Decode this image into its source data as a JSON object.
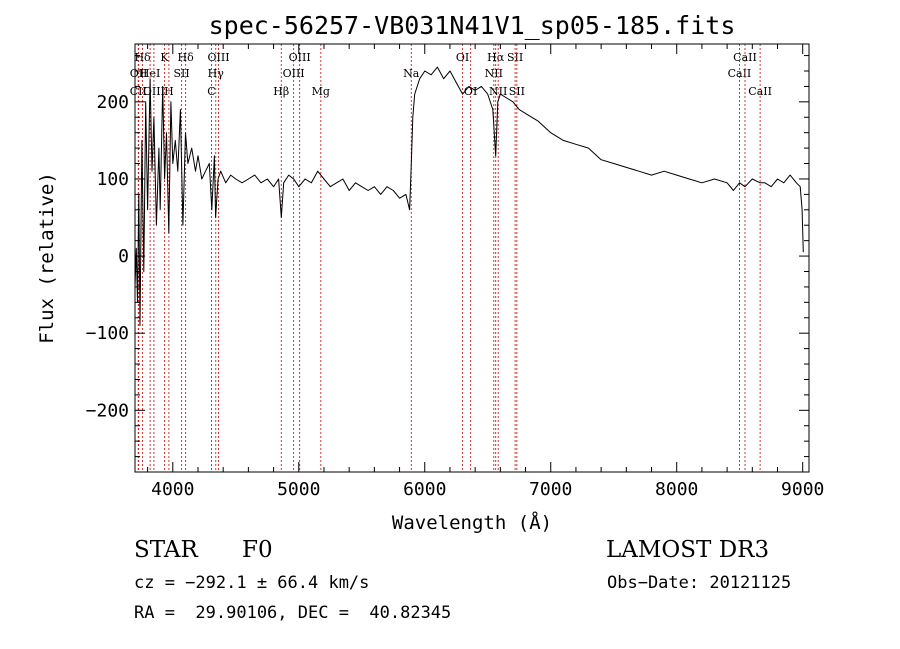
{
  "chart_data": {
    "type": "line",
    "title": "spec-56257-VB031N41V1_sp05-185.fits",
    "xlabel": "Wavelength (Å)",
    "ylabel": "Flux (relative)",
    "xlim": [
      3700,
      9050
    ],
    "ylim": [
      -280,
      275
    ],
    "xticks": [
      4000,
      5000,
      6000,
      7000,
      8000,
      9000
    ],
    "yticks": [
      -200,
      -100,
      0,
      100,
      200
    ],
    "grid": false,
    "line_color": "#000000",
    "marker_color": "#cc2222",
    "series": [
      {
        "x": [
          3700,
          3710,
          3720,
          3730,
          3740,
          3755,
          3770,
          3785,
          3800,
          3820,
          3835,
          3850,
          3870,
          3890,
          3900,
          3920,
          3935,
          3950,
          3968,
          3985,
          4000,
          4020,
          4040,
          4060,
          4080,
          4101,
          4120,
          4150,
          4180,
          4200,
          4230,
          4260,
          4290,
          4310,
          4330,
          4340,
          4360,
          4380,
          4420,
          4460,
          4500,
          4550,
          4600,
          4650,
          4700,
          4750,
          4800,
          4840,
          4861,
          4880,
          4920,
          4960,
          5000,
          5050,
          5100,
          5150,
          5200,
          5250,
          5300,
          5350,
          5400,
          5450,
          5500,
          5550,
          5600,
          5650,
          5700,
          5750,
          5800,
          5850,
          5880,
          5893,
          5905,
          5920,
          5940,
          5960,
          6000,
          6050,
          6100,
          6150,
          6200,
          6250,
          6300,
          6350,
          6400,
          6450,
          6500,
          6540,
          6563,
          6580,
          6600,
          6650,
          6700,
          6750,
          6800,
          6850,
          6900,
          7000,
          7100,
          7200,
          7300,
          7400,
          7500,
          7600,
          7700,
          7800,
          7900,
          8000,
          8100,
          8200,
          8300,
          8400,
          8450,
          8498,
          8542,
          8600,
          8662,
          8700,
          8750,
          8800,
          8850,
          8900,
          8950,
          8980,
          8995,
          9005
        ],
        "y": [
          -40,
          10,
          -60,
          80,
          -90,
          150,
          -20,
          200,
          60,
          230,
          110,
          180,
          40,
          140,
          60,
          220,
          100,
          160,
          30,
          200,
          120,
          150,
          110,
          190,
          40,
          160,
          120,
          140,
          110,
          130,
          100,
          110,
          120,
          60,
          130,
          50,
          100,
          110,
          95,
          105,
          100,
          95,
          100,
          105,
          95,
          100,
          90,
          100,
          50,
          95,
          105,
          100,
          90,
          100,
          95,
          110,
          100,
          90,
          95,
          100,
          85,
          95,
          90,
          85,
          90,
          80,
          90,
          85,
          75,
          80,
          60,
          120,
          180,
          210,
          220,
          230,
          240,
          235,
          245,
          230,
          240,
          225,
          210,
          220,
          215,
          220,
          210,
          190,
          130,
          200,
          210,
          205,
          200,
          190,
          185,
          180,
          175,
          160,
          150,
          145,
          140,
          125,
          120,
          115,
          110,
          105,
          110,
          105,
          100,
          95,
          100,
          95,
          85,
          95,
          90,
          100,
          95,
          95,
          90,
          100,
          95,
          105,
          95,
          90,
          60,
          5
        ]
      }
    ],
    "lines": [
      {
        "label": "CII",
        "x": 3726,
        "row": 3
      },
      {
        "label": "OII",
        "x": 3729,
        "row": 2
      },
      {
        "label": "Hδ",
        "x": 3760,
        "row": 1
      },
      {
        "label": "HeI",
        "x": 3820,
        "row": 2
      },
      {
        "label": "OIII",
        "x": 3850,
        "row": 3
      },
      {
        "label": "K",
        "x": 3934,
        "row": 1
      },
      {
        "label": "H",
        "x": 3969,
        "row": 3
      },
      {
        "label": "SII",
        "x": 4070,
        "row": 2
      },
      {
        "label": "Hδ",
        "x": 4102,
        "row": 1
      },
      {
        "label": "OIII",
        "x": 4363,
        "row": 1
      },
      {
        "label": "Hγ",
        "x": 4341,
        "row": 2
      },
      {
        "label": "C",
        "x": 4307,
        "row": 3
      },
      {
        "label": "Hβ",
        "x": 4861,
        "row": 3
      },
      {
        "label": "OIII",
        "x": 4959,
        "row": 2
      },
      {
        "label": "OIII",
        "x": 5007,
        "row": 1
      },
      {
        "label": "Mg",
        "x": 5175,
        "row": 3
      },
      {
        "label": "Na",
        "x": 5893,
        "row": 2
      },
      {
        "label": "OI",
        "x": 6300,
        "row": 1
      },
      {
        "label": "OI",
        "x": 6364,
        "row": 3
      },
      {
        "label": "NII",
        "x": 6548,
        "row": 2
      },
      {
        "label": "Hα",
        "x": 6563,
        "row": 1
      },
      {
        "label": "NII",
        "x": 6583,
        "row": 3
      },
      {
        "label": "SII",
        "x": 6717,
        "row": 1
      },
      {
        "label": "SII",
        "x": 6731,
        "row": 3
      },
      {
        "label": "CaII",
        "x": 8498,
        "row": 2
      },
      {
        "label": "CaII",
        "x": 8542,
        "row": 1
      },
      {
        "label": "CaII",
        "x": 8662,
        "row": 3
      }
    ]
  },
  "info": {
    "object_class": "STAR",
    "subclass": "F0",
    "survey": "LAMOST DR3",
    "cz": "cz = −292.1 ± 66.4 km/s",
    "obs_date": "Obs−Date: 20121125",
    "coords": "RA =  29.90106, DEC =  40.82345"
  }
}
